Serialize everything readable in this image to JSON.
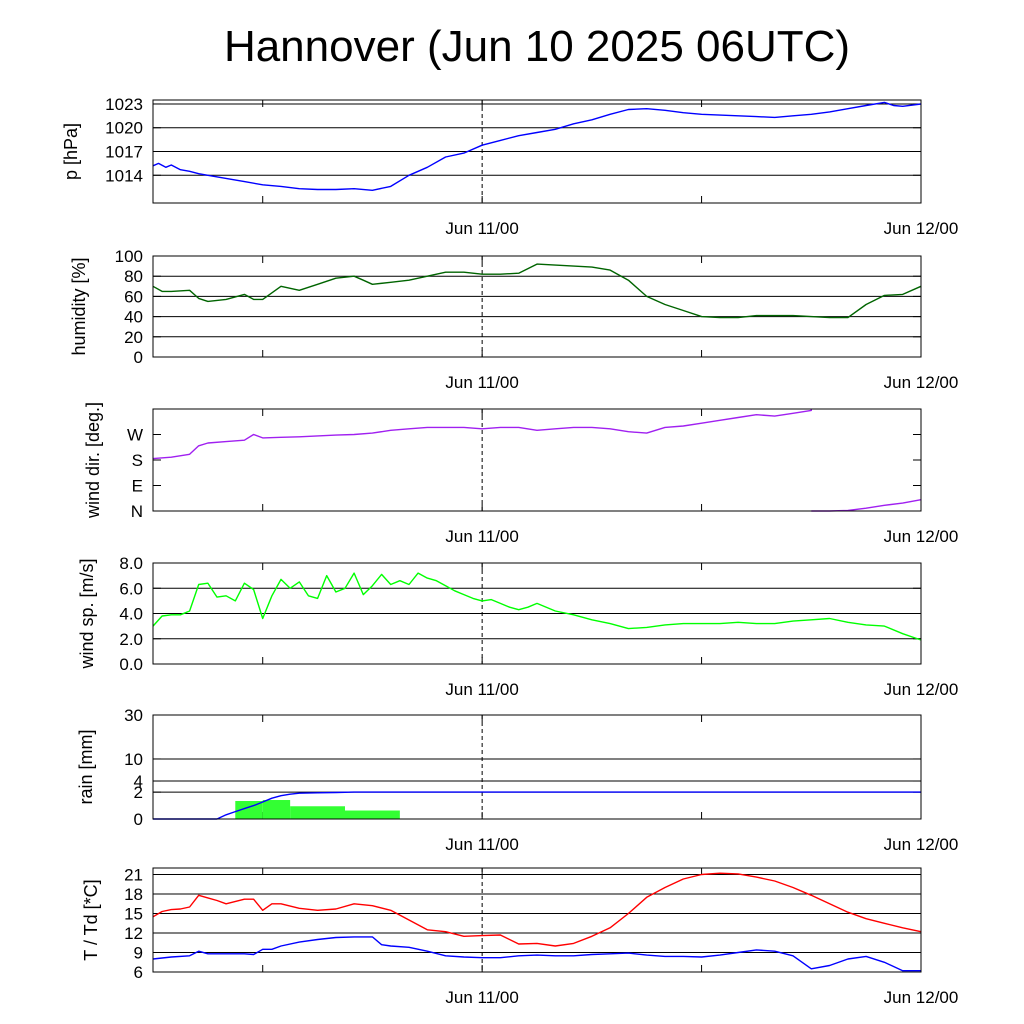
{
  "title": "Hannover (Jun 10 2025 06UTC)",
  "x_axis": {
    "ticks": [
      {
        "hours": 18,
        "label": "Jun 11/00"
      },
      {
        "hours": 42,
        "label": "Jun 12/00"
      }
    ],
    "minor_ticks_hours": [
      6,
      30
    ],
    "range_hours": [
      0,
      42
    ],
    "dashed_line_hours": 18
  },
  "colors": {
    "pressure": "#0000ff",
    "humidity": "#006400",
    "wind_dir": "#a020f0",
    "wind_speed": "#00ff00",
    "rain_bar": "#33ff33",
    "rain_cumulative": "#0000ff",
    "temperature": "#ff0000",
    "dewpoint": "#0000ff"
  },
  "chart_data": [
    {
      "type": "line",
      "panel": "pressure",
      "ylabel": "p [hPa]",
      "ylim": [
        1010.5,
        1023.5
      ],
      "yticks": [
        1014,
        1017,
        1020,
        1023
      ],
      "ytick_labels": [
        "1014",
        "1017",
        "1020",
        "1023"
      ],
      "grid": true,
      "series": [
        {
          "x": [
            0,
            0.3,
            0.7,
            1,
            1.5,
            2,
            2.5,
            3,
            4,
            5,
            6,
            7,
            8,
            9,
            10,
            11,
            12,
            13,
            14,
            15,
            16,
            17,
            18,
            19,
            20,
            21,
            22,
            23,
            24,
            25,
            26,
            27,
            28,
            29,
            30,
            31,
            32,
            33,
            34,
            35,
            36,
            37,
            38,
            39,
            40,
            40.5,
            41,
            42
          ],
          "y": [
            1015.2,
            1015.5,
            1015,
            1015.3,
            1014.7,
            1014.5,
            1014.2,
            1014,
            1013.6,
            1013.2,
            1012.8,
            1012.6,
            1012.3,
            1012.2,
            1012.2,
            1012.3,
            1012.1,
            1012.6,
            1014,
            1015,
            1016.3,
            1016.8,
            1017.8,
            1018.4,
            1019,
            1019.4,
            1019.8,
            1020.5,
            1021,
            1021.7,
            1022.3,
            1022.4,
            1022.2,
            1021.9,
            1021.7,
            1021.6,
            1021.5,
            1021.4,
            1021.3,
            1021.5,
            1021.7,
            1022,
            1022.4,
            1022.8,
            1023.2,
            1022.8,
            1022.7,
            1023
          ]
        }
      ]
    },
    {
      "type": "line",
      "panel": "humidity",
      "ylabel": "humidity [%]",
      "ylim": [
        0,
        100
      ],
      "yticks": [
        0,
        20,
        40,
        60,
        80,
        100
      ],
      "ytick_labels": [
        "0",
        "20",
        "40",
        "60",
        "80",
        "100"
      ],
      "grid": true,
      "series": [
        {
          "x": [
            0,
            0.5,
            1,
            2,
            2.5,
            3,
            4,
            5,
            5.5,
            6,
            7,
            8,
            9,
            10,
            11,
            11.5,
            12,
            13,
            14,
            15,
            16,
            17,
            18,
            19,
            20,
            21,
            22,
            23,
            24,
            25,
            26,
            27,
            28,
            29,
            30,
            31,
            32,
            33,
            34,
            35,
            36,
            37,
            38,
            39,
            40,
            41,
            42
          ],
          "y": [
            70,
            65,
            65,
            66,
            58,
            55,
            57,
            62,
            57,
            57,
            70,
            66,
            72,
            78,
            80,
            76,
            72,
            74,
            76,
            80,
            84,
            84,
            82,
            82,
            83,
            92,
            91,
            90,
            89,
            86,
            76,
            60,
            52,
            46,
            40,
            39,
            39,
            41,
            41,
            41,
            40,
            39,
            39,
            52,
            61,
            62,
            70
          ]
        }
      ]
    },
    {
      "type": "line",
      "panel": "wind_dir",
      "ylabel": "wind dir. [deg.]",
      "ylim": [
        0,
        360
      ],
      "yticks": [
        0,
        90,
        180,
        270
      ],
      "ytick_labels": [
        "N",
        "E",
        "S",
        "W"
      ],
      "grid": false,
      "series": [
        {
          "x": [
            0,
            1,
            2,
            2.5,
            3,
            4,
            5,
            5.5,
            6,
            7,
            8,
            9,
            10,
            11,
            12,
            13,
            14,
            15,
            16,
            17,
            18,
            19,
            20,
            21,
            22,
            23,
            24,
            25,
            26,
            27,
            28,
            29,
            30,
            31,
            32,
            33,
            34,
            35,
            36,
            36
          ],
          "y": [
            185,
            190,
            200,
            230,
            240,
            245,
            250,
            270,
            258,
            260,
            262,
            265,
            268,
            270,
            275,
            285,
            290,
            295,
            295,
            295,
            290,
            295,
            295,
            285,
            290,
            295,
            295,
            290,
            280,
            275,
            295,
            300,
            310,
            320,
            330,
            340,
            335,
            345,
            355,
            360
          ]
        },
        {
          "x": [
            36,
            37,
            38,
            39,
            40,
            41,
            42
          ],
          "y": [
            0,
            0,
            2,
            10,
            20,
            28,
            40
          ]
        }
      ]
    },
    {
      "type": "line",
      "panel": "wind_speed",
      "ylabel": "wind sp. [m/s]",
      "ylim": [
        0,
        8
      ],
      "yticks": [
        0,
        2,
        4,
        6,
        8
      ],
      "ytick_labels": [
        "0.0",
        "2.0",
        "4.0",
        "6.0",
        "8.0"
      ],
      "grid": true,
      "series": [
        {
          "x": [
            0,
            0.5,
            1,
            1.5,
            2,
            2.5,
            3,
            3.5,
            4,
            4.5,
            5,
            5.5,
            6,
            6.5,
            7,
            7.5,
            8,
            8.5,
            9,
            9.5,
            10,
            10.5,
            11,
            11.5,
            12,
            12.5,
            13,
            13.5,
            14,
            14.5,
            15,
            15.5,
            16,
            16.5,
            17,
            17.5,
            18,
            18.5,
            19,
            19.5,
            20,
            20.5,
            21,
            22,
            23,
            24,
            25,
            26,
            27,
            28,
            29,
            30,
            31,
            32,
            33,
            34,
            35,
            36,
            37,
            38,
            39,
            40,
            41,
            42
          ],
          "y": [
            3,
            3.8,
            3.9,
            3.9,
            4.2,
            6.3,
            6.4,
            5.3,
            5.4,
            5,
            6.4,
            5.9,
            3.6,
            5.4,
            6.7,
            6,
            6.5,
            5.4,
            5.2,
            7,
            5.7,
            6,
            7.2,
            5.5,
            6.2,
            7.1,
            6.3,
            6.6,
            6.3,
            7.2,
            6.8,
            6.6,
            6.2,
            5.8,
            5.5,
            5.2,
            5,
            5.1,
            4.8,
            4.5,
            4.3,
            4.5,
            4.8,
            4.2,
            3.9,
            3.5,
            3.2,
            2.8,
            2.9,
            3.1,
            3.2,
            3.2,
            3.2,
            3.3,
            3.2,
            3.2,
            3.4,
            3.5,
            3.6,
            3.3,
            3.1,
            3,
            2.4,
            1.9
          ]
        }
      ]
    },
    {
      "type": "bar+line",
      "panel": "rain",
      "ylabel": "rain [mm]",
      "ylim": [
        0,
        30
      ],
      "scale": "sqrt",
      "yticks": [
        0,
        2,
        4,
        10,
        30
      ],
      "ytick_labels": [
        "0",
        "2",
        "4",
        "10",
        "30"
      ],
      "grid": true,
      "bars": [
        {
          "x0": 4.5,
          "x1": 6,
          "value": 0.9
        },
        {
          "x0": 6,
          "x1": 7.5,
          "value": 1.0
        },
        {
          "x0": 7.5,
          "x1": 10.5,
          "value": 0.45
        },
        {
          "x0": 10.5,
          "x1": 13.5,
          "value": 0.2
        }
      ],
      "series": [
        {
          "x": [
            0,
            3.5,
            4,
            4.5,
            5,
            5.5,
            6,
            6.5,
            7,
            7.5,
            8,
            9,
            10,
            11,
            12,
            18,
            24,
            30,
            36,
            42
          ],
          "y": [
            0,
            0,
            0.05,
            0.15,
            0.3,
            0.5,
            0.8,
            1.2,
            1.5,
            1.7,
            1.85,
            1.9,
            1.95,
            2,
            2,
            2,
            2,
            2,
            2,
            2
          ]
        }
      ]
    },
    {
      "type": "line",
      "panel": "temperature",
      "ylabel": "T / Td [*C]",
      "ylim": [
        6,
        22
      ],
      "yticks": [
        6,
        9,
        12,
        15,
        18,
        21
      ],
      "ytick_labels": [
        "6",
        "9",
        "12",
        "15",
        "18",
        "21"
      ],
      "grid": true,
      "series": [
        {
          "x": [
            0,
            0.5,
            1,
            1.5,
            2,
            2.5,
            3,
            3.5,
            4,
            5,
            5.5,
            6,
            6.5,
            7,
            8,
            9,
            10,
            11,
            12,
            13,
            14,
            15,
            16,
            17,
            18,
            19,
            20,
            21,
            22,
            23,
            24,
            25,
            26,
            27,
            28,
            29,
            30,
            31,
            32,
            33,
            34,
            35,
            36,
            37,
            38,
            39,
            40,
            41,
            42
          ],
          "y": [
            14.5,
            15.3,
            15.6,
            15.7,
            16,
            17.8,
            17.4,
            17,
            16.5,
            17.2,
            17.2,
            15.5,
            16.5,
            16.5,
            15.8,
            15.5,
            15.7,
            16.5,
            16.2,
            15.5,
            14,
            12.5,
            12.2,
            11.5,
            11.6,
            11.7,
            10.3,
            10.4,
            10,
            10.4,
            11.5,
            12.8,
            15,
            17.5,
            19,
            20.3,
            21,
            21.2,
            21.1,
            20.6,
            20,
            19,
            17.8,
            16.5,
            15.2,
            14.2,
            13.5,
            12.8,
            12.2
          ]
        },
        {
          "x": [
            0,
            1,
            2,
            2.5,
            3,
            4,
            5,
            5.5,
            6,
            6.5,
            7,
            8,
            9,
            10,
            11,
            12,
            12.5,
            13,
            14,
            15,
            16,
            17,
            18,
            19,
            20,
            21,
            22,
            23,
            24,
            25,
            26,
            27,
            28,
            29,
            30,
            31,
            32,
            33,
            34,
            35,
            36,
            37,
            38,
            39,
            40,
            41,
            42
          ],
          "y": [
            8,
            8.3,
            8.5,
            9.2,
            8.8,
            8.8,
            8.8,
            8.7,
            9.5,
            9.5,
            10,
            10.6,
            11,
            11.3,
            11.4,
            11.4,
            10.2,
            10,
            9.8,
            9.2,
            8.5,
            8.3,
            8.2,
            8.2,
            8.5,
            8.6,
            8.5,
            8.5,
            8.7,
            8.8,
            8.9,
            8.6,
            8.4,
            8.4,
            8.3,
            8.6,
            9,
            9.4,
            9.2,
            8.5,
            6.5,
            7,
            8,
            8.4,
            7.5,
            6.2,
            6.2
          ]
        }
      ]
    }
  ]
}
